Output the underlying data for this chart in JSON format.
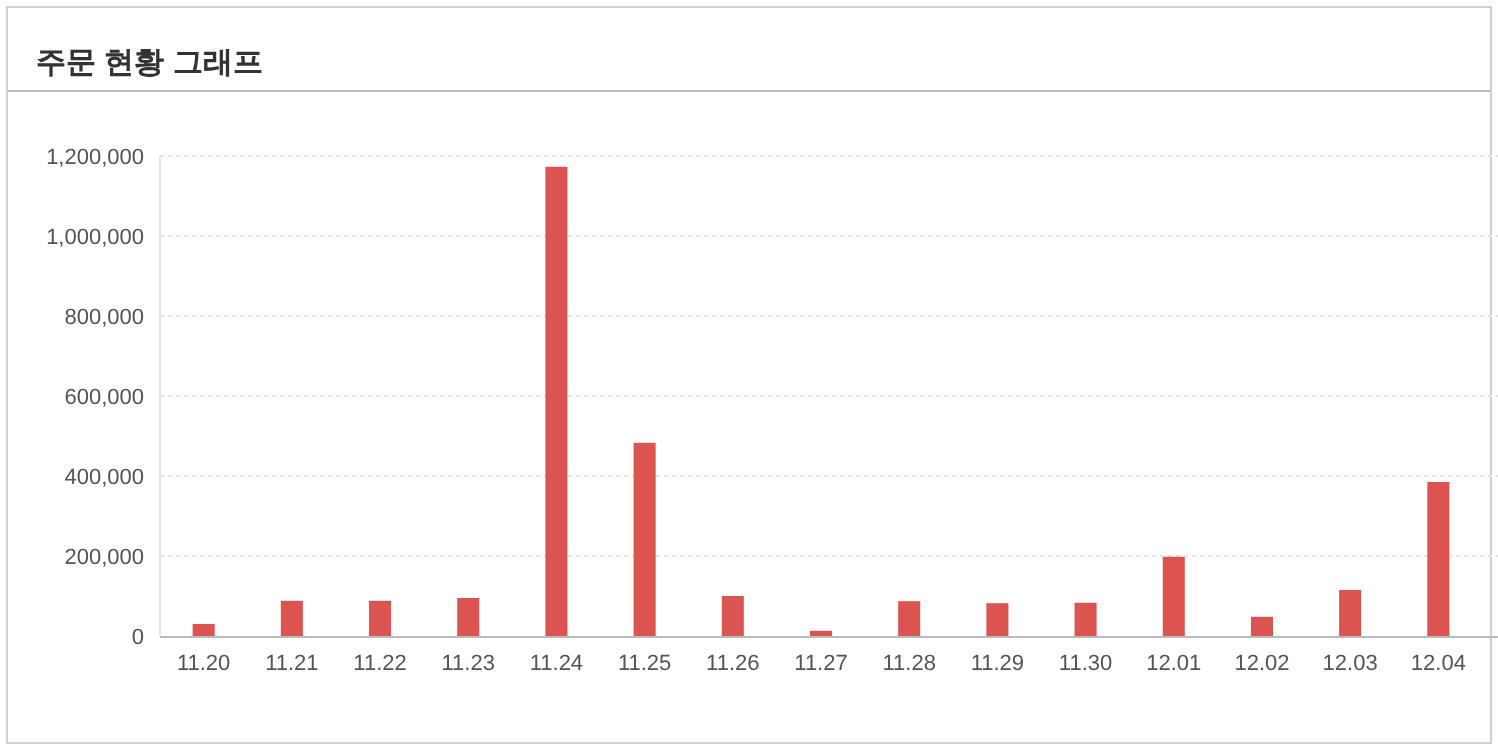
{
  "chart_data": {
    "type": "bar",
    "title": "주문 현황 그래프",
    "categories": [
      "11.20",
      "11.21",
      "11.22",
      "11.23",
      "11.24",
      "11.25",
      "11.26",
      "11.27",
      "11.28",
      "11.29",
      "11.30",
      "12.01",
      "12.02",
      "12.03",
      "12.04"
    ],
    "values": [
      30000,
      88000,
      88000,
      95000,
      1173000,
      483000,
      100000,
      13000,
      87000,
      82000,
      83000,
      198000,
      48000,
      115000,
      385000
    ],
    "color": "#dc5450",
    "ylim": [
      0,
      1200000
    ],
    "yticks": [
      {
        "value": 0,
        "label": "0"
      },
      {
        "value": 200000,
        "label": "200,000"
      },
      {
        "value": 400000,
        "label": "400,000"
      },
      {
        "value": 600000,
        "label": "600,000"
      },
      {
        "value": 800000,
        "label": "800,000"
      },
      {
        "value": 1000000,
        "label": "1,000,000"
      },
      {
        "value": 1200000,
        "label": "1,200,000"
      }
    ],
    "grid": "y"
  }
}
